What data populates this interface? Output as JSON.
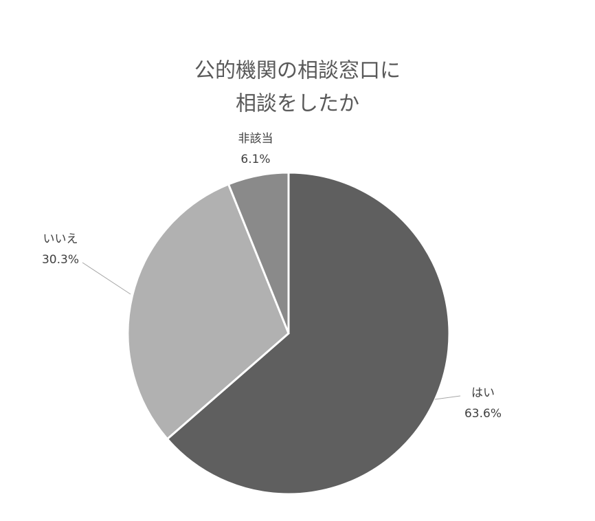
{
  "chart_data": {
    "type": "pie",
    "title": [
      "公的機関の相談窓口に",
      "相談をしたか"
    ],
    "categories": [
      "はい",
      "いいえ",
      "非該当"
    ],
    "values": [
      63.6,
      30.3,
      6.1
    ],
    "value_labels": [
      "63.6%",
      "30.3%",
      "6.1%"
    ],
    "colors": [
      "#5f5f5f",
      "#b1b1b1",
      "#8a8a8a"
    ]
  }
}
